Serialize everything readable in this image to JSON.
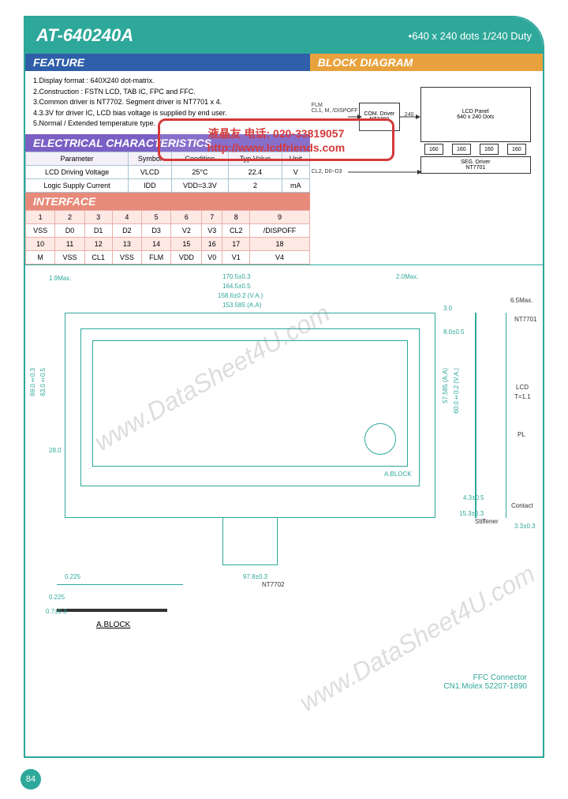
{
  "title": {
    "part": "AT-640240A",
    "spec": "•640 x 240 dots  1/240 Duty"
  },
  "sections": {
    "feature": "FEATURE",
    "block_diagram": "BLOCK DIAGRAM",
    "elec_char": "ELECTRICAL  CHARACTERISTICS",
    "interface": "INTERFACE"
  },
  "features": [
    "1.Display format : 640X240 dot-matrix.",
    "2.Construction : FSTN LCD, TAB IC, FPC and FFC.",
    "3.Common driver is NT7702. Segment driver is NT7701 x 4.",
    "4.3.3V for driver IC, LCD bias voltage is supplied by end user.",
    "5.Normal / Extended temperature type."
  ],
  "stamp": {
    "line1": "液晶友 电话: 020-33819057",
    "line2": "http://www.lcdfriends.com"
  },
  "elec_table": {
    "headers": [
      "Parameter",
      "Symbol",
      "Condition",
      "Typ.Value",
      "Unit"
    ],
    "rows": [
      [
        "LCD Driving Voltage",
        "VLCD",
        "25°C",
        "22.4",
        "V"
      ],
      [
        "Logic Supply Current",
        "IDD",
        "VDD=3.3V",
        "2",
        "mA"
      ]
    ]
  },
  "interface_table": {
    "rows": [
      [
        "1",
        "2",
        "3",
        "4",
        "5",
        "6",
        "7",
        "8",
        "9"
      ],
      [
        "VSS",
        "D0",
        "D1",
        "D2",
        "D3",
        "V2",
        "V3",
        "CL2",
        "/DISPOFF"
      ],
      [
        "10",
        "11",
        "12",
        "13",
        "14",
        "15",
        "16",
        "17",
        "18"
      ],
      [
        "M",
        "VSS",
        "CL1",
        "VSS",
        "FLM",
        "VDD",
        "V0",
        "V1",
        "V4"
      ]
    ]
  },
  "block_diagram": {
    "input_label": "FLM\nCL1, M, /DISPOFF",
    "com_driver": "COM. Driver\nNT7702",
    "count": "240",
    "lcd_panel": "LCD Panel\n640 x 240 Dots",
    "seg_count": "160",
    "seg_driver": "SEG. Driver\nNT7701",
    "bottom_label": "CL2, D0~D3"
  },
  "drawing": {
    "top_dims": [
      "170.5±0.3",
      "164.5±0.5",
      "158.6±0.2 (V.A.)",
      "153.585 (A.A)"
    ],
    "left_dims": [
      "69.0±0.3",
      "63.0±0.5",
      "60.0",
      "57.585 (A.A)",
      "28.0",
      "60.0±0.2 (V.A.)"
    ],
    "right_side": [
      "6.5Max.",
      "NT7701",
      "LCD",
      "T=1.1",
      "PL",
      "Contact"
    ],
    "misc": [
      "1.9Max.",
      "2.0Max.",
      "3.0",
      "8.0±0.5",
      "3.3±0.3",
      "A.BLOCK",
      "0.225",
      "0.225",
      "0.7±0.3",
      "NT7702",
      "Stiffener",
      "4.3±0.5",
      "15.3±0.3",
      "97.8±0.3"
    ],
    "a_block": "A.BLOCK",
    "ffc": "FFC Connector\nCN1:Molex 52207-1890"
  },
  "watermark": "www.DataSheet4U.com",
  "page_number": "84"
}
